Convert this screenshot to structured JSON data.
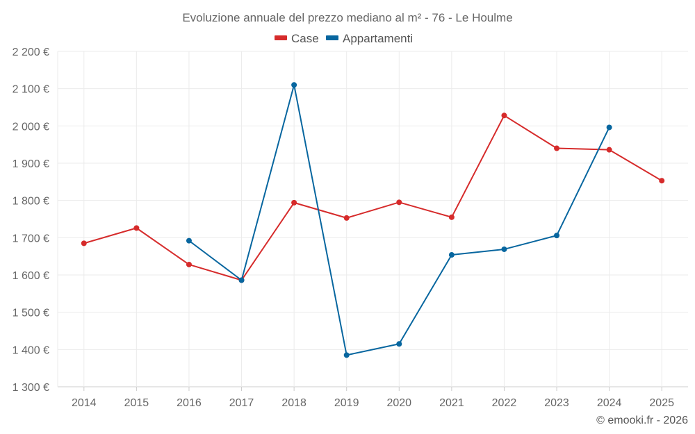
{
  "chart_data": {
    "type": "line",
    "title": "Evoluzione annuale del prezzo mediano al m² - 76 - Le Houlme",
    "categories": [
      "2014",
      "2015",
      "2016",
      "2017",
      "2018",
      "2019",
      "2020",
      "2021",
      "2022",
      "2023",
      "2024",
      "2025"
    ],
    "ylim": [
      1300,
      2200
    ],
    "yticks": [
      1300,
      1400,
      1500,
      1600,
      1700,
      1800,
      1900,
      2000,
      2100,
      2200
    ],
    "ytick_labels": [
      "1 300 €",
      "1 400 €",
      "1 500 €",
      "1 600 €",
      "1 700 €",
      "1 800 €",
      "1 900 €",
      "2 000 €",
      "2 100 €",
      "2 200 €"
    ],
    "grid": true,
    "legend_position": "top-center",
    "series": [
      {
        "name": "Case",
        "color": "#d62b2b",
        "values": [
          1685,
          1726,
          1628,
          1586,
          1794,
          1753,
          1795,
          1755,
          2028,
          1940,
          1936,
          1853
        ]
      },
      {
        "name": "Appartamenti",
        "color": "#07669f",
        "values": [
          null,
          null,
          1692,
          1586,
          2110,
          1385,
          1415,
          1654,
          1669,
          1706,
          1996,
          null
        ]
      }
    ]
  },
  "credit": "© emooki.fr - 2026"
}
